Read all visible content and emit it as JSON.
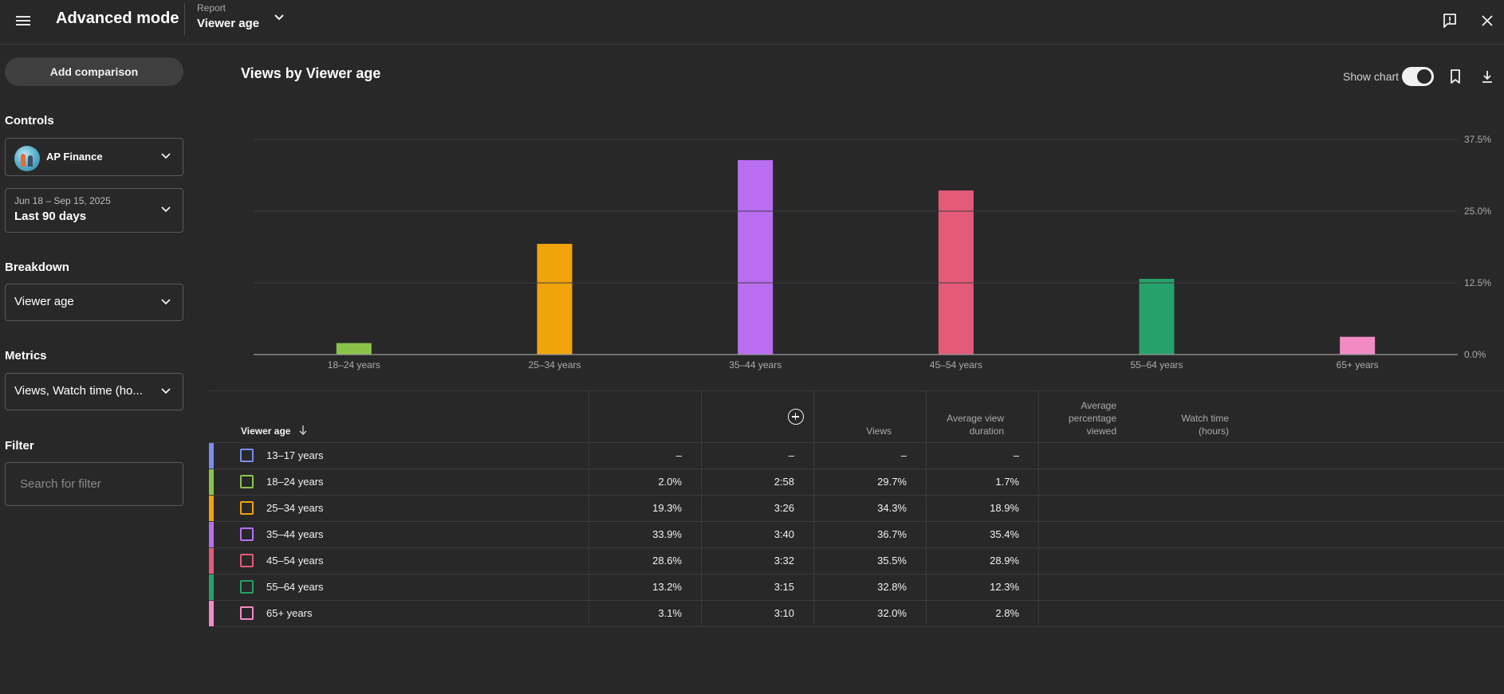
{
  "topbar": {
    "title": "Advanced mode",
    "report_caption": "Report",
    "report_value": "Viewer age"
  },
  "sidebar": {
    "add_comparison": "Add comparison",
    "controls_title": "Controls",
    "channel_name": "AP Finance",
    "date_caption": "Jun 18 – Sep 15, 2025",
    "date_value": "Last 90 days",
    "breakdown_title": "Breakdown",
    "breakdown_value": "Viewer age",
    "metrics_title": "Metrics",
    "metrics_value": "Views, Watch time (ho...",
    "filter_title": "Filter",
    "filter_placeholder": "Search for filter"
  },
  "chart_header": {
    "title": "Views by Viewer age",
    "show_chart_label": "Show chart",
    "show_chart_on": true
  },
  "chart_data": {
    "type": "bar",
    "title": "Views by Viewer age",
    "categories": [
      "18–24 years",
      "25–34 years",
      "35–44 years",
      "45–54 years",
      "55–64 years",
      "65+ years"
    ],
    "values": [
      2.0,
      19.3,
      33.9,
      28.6,
      13.2,
      3.1
    ],
    "colors": [
      "#8bc34a",
      "#f0a30a",
      "#b96ef2",
      "#e35b78",
      "#27a16b",
      "#f28bc4"
    ],
    "y_ticks": [
      "0.0%",
      "12.5%",
      "25.0%",
      "37.5%"
    ],
    "y_tick_values": [
      0,
      12.5,
      25,
      37.5
    ],
    "ylim": [
      0,
      37.5
    ],
    "grid": true,
    "y_axis_side": "right"
  },
  "table": {
    "headers": {
      "dimension": "Viewer age",
      "views": "Views",
      "avg_view_duration": [
        "Average view",
        "duration"
      ],
      "avg_pct_viewed": [
        "Average",
        "percentage",
        "viewed"
      ],
      "watch_time": [
        "Watch time",
        "(hours)"
      ]
    },
    "rows": [
      {
        "label": "13–17 years",
        "color": "#7b8cf0",
        "views": "–",
        "avd": "–",
        "apv": "–",
        "wt": "–"
      },
      {
        "label": "18–24 years",
        "color": "#8bc34a",
        "views": "2.0%",
        "avd": "2:58",
        "apv": "29.7%",
        "wt": "1.7%"
      },
      {
        "label": "25–34 years",
        "color": "#f0a30a",
        "views": "19.3%",
        "avd": "3:26",
        "apv": "34.3%",
        "wt": "18.9%"
      },
      {
        "label": "35–44 years",
        "color": "#b96ef2",
        "views": "33.9%",
        "avd": "3:40",
        "apv": "36.7%",
        "wt": "35.4%"
      },
      {
        "label": "45–54 years",
        "color": "#e35b78",
        "views": "28.6%",
        "avd": "3:32",
        "apv": "35.5%",
        "wt": "28.9%"
      },
      {
        "label": "55–64 years",
        "color": "#27a16b",
        "views": "13.2%",
        "avd": "3:15",
        "apv": "32.8%",
        "wt": "12.3%"
      },
      {
        "label": "65+ years",
        "color": "#f28bc4",
        "views": "3.1%",
        "avd": "3:10",
        "apv": "32.0%",
        "wt": "2.8%"
      }
    ]
  }
}
